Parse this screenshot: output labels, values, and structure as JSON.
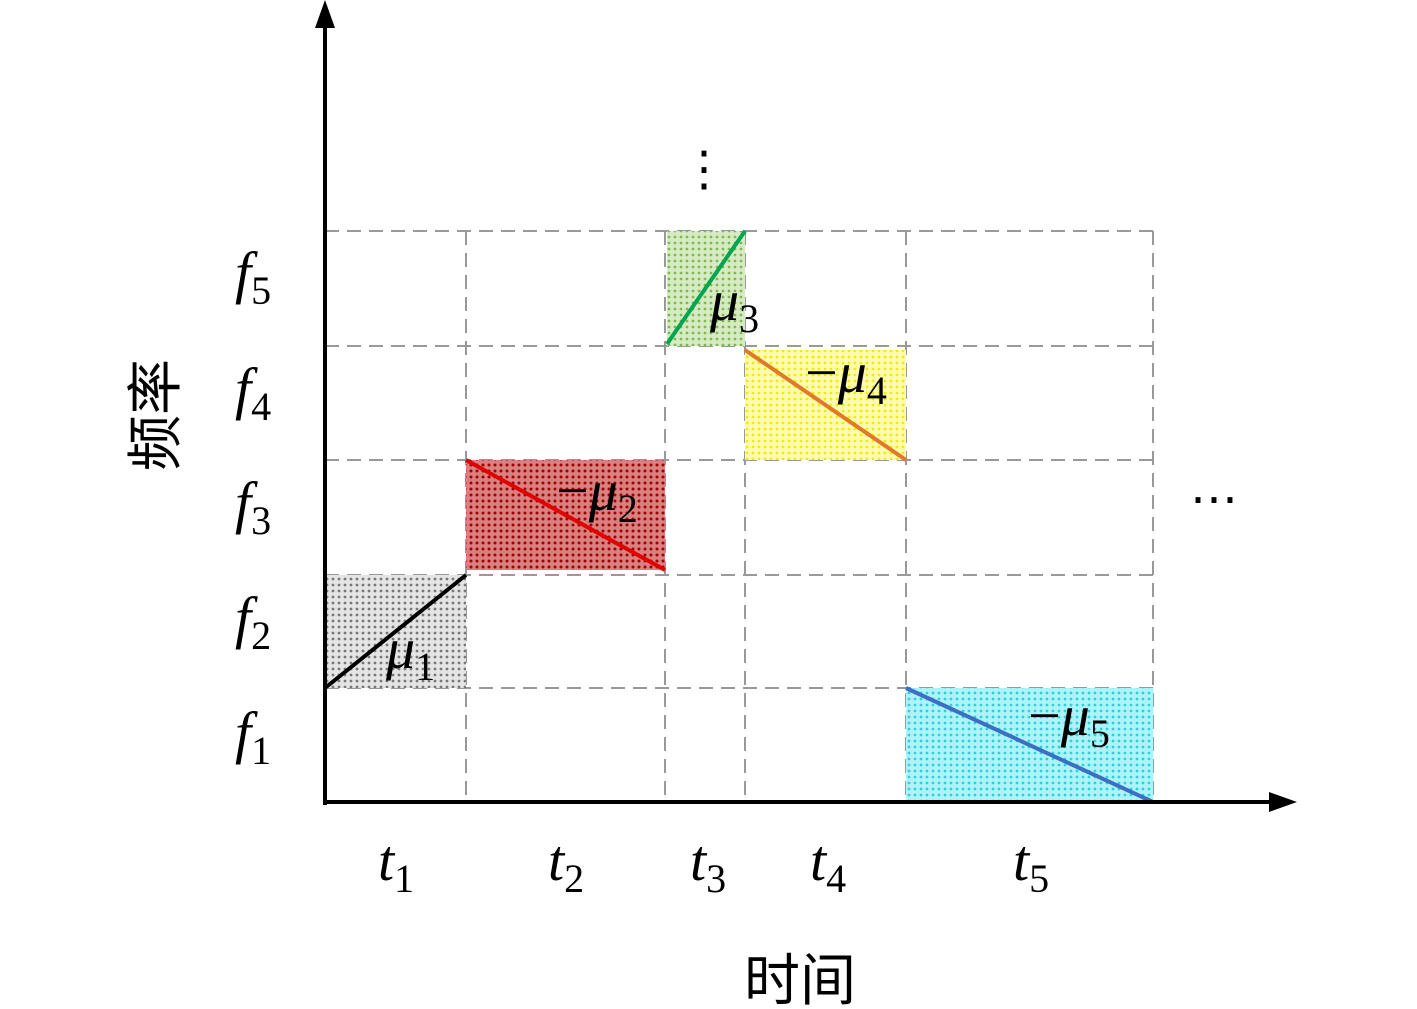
{
  "axes": {
    "x_label": "时间",
    "y_label": "频率"
  },
  "frequency_labels": [
    {
      "symbol": "f",
      "index": "1"
    },
    {
      "symbol": "f",
      "index": "2"
    },
    {
      "symbol": "f",
      "index": "3"
    },
    {
      "symbol": "f",
      "index": "4"
    },
    {
      "symbol": "f",
      "index": "5"
    }
  ],
  "time_labels": [
    {
      "symbol": "t",
      "index": "1"
    },
    {
      "symbol": "t",
      "index": "2"
    },
    {
      "symbol": "t",
      "index": "3"
    },
    {
      "symbol": "t",
      "index": "4"
    },
    {
      "symbol": "t",
      "index": "5"
    }
  ],
  "segments": [
    {
      "symbol": "μ",
      "index": "1"
    },
    {
      "sign": "−",
      "symbol": "μ",
      "index": "2"
    },
    {
      "symbol": "μ",
      "index": "3"
    },
    {
      "sign": "−",
      "symbol": "μ",
      "index": "4"
    },
    {
      "sign": "−",
      "symbol": "μ",
      "index": "5"
    }
  ],
  "ellipsis": {
    "vertical": "⋮",
    "horizontal": "⋯"
  }
}
